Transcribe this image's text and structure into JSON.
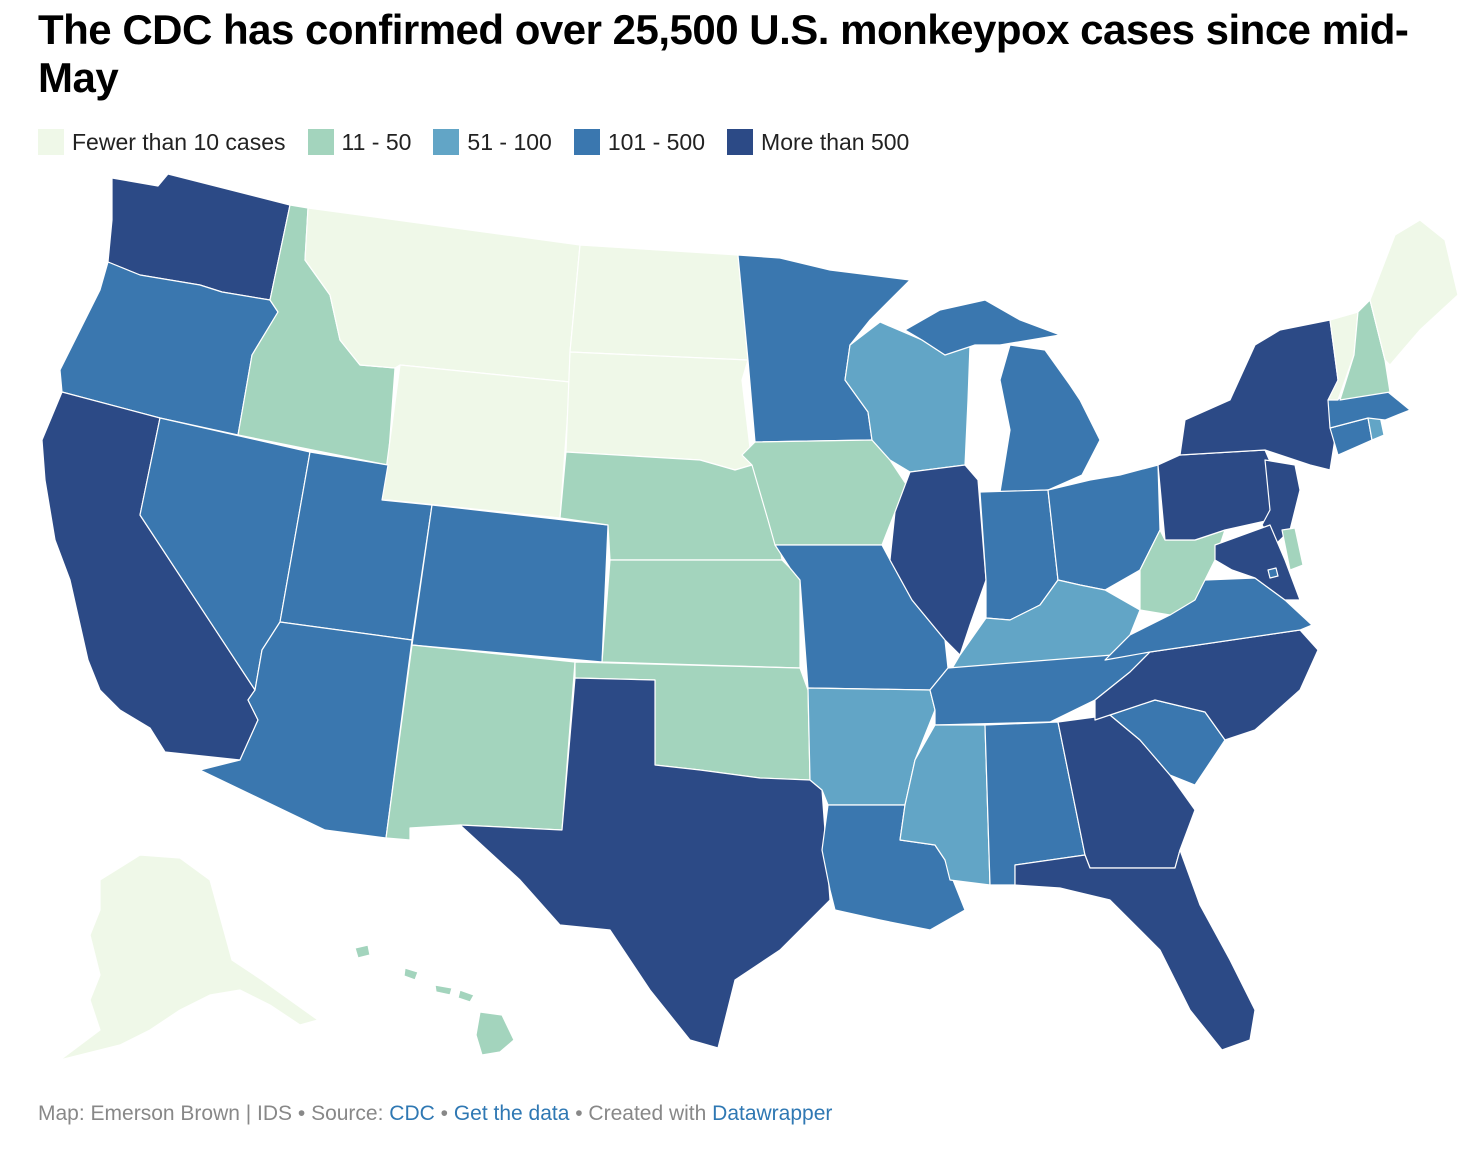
{
  "title": "The CDC has confirmed over 25,500 U.S. monkeypox cases since mid-May",
  "legend": [
    {
      "label": "Fewer than 10 cases",
      "color": "#eff8e8"
    },
    {
      "label": "11 - 50",
      "color": "#a3d4bd"
    },
    {
      "label": "51 - 100",
      "color": "#62a5c6"
    },
    {
      "label": "101 - 500",
      "color": "#3a77af"
    },
    {
      "label": "More than 500",
      "color": "#2c4a86"
    }
  ],
  "states": [
    {
      "id": "WA",
      "bin": 4
    },
    {
      "id": "OR",
      "bin": 3
    },
    {
      "id": "CA",
      "bin": 4
    },
    {
      "id": "ID",
      "bin": 1
    },
    {
      "id": "NV",
      "bin": 3
    },
    {
      "id": "MT",
      "bin": 0
    },
    {
      "id": "WY",
      "bin": 0
    },
    {
      "id": "UT",
      "bin": 3
    },
    {
      "id": "AZ",
      "bin": 3
    },
    {
      "id": "CO",
      "bin": 3
    },
    {
      "id": "NM",
      "bin": 1
    },
    {
      "id": "ND",
      "bin": 0
    },
    {
      "id": "SD",
      "bin": 0
    },
    {
      "id": "NE",
      "bin": 1
    },
    {
      "id": "KS",
      "bin": 1
    },
    {
      "id": "OK",
      "bin": 1
    },
    {
      "id": "TX",
      "bin": 4
    },
    {
      "id": "MN",
      "bin": 3
    },
    {
      "id": "IA",
      "bin": 1
    },
    {
      "id": "MO",
      "bin": 3
    },
    {
      "id": "AR",
      "bin": 2
    },
    {
      "id": "LA",
      "bin": 3
    },
    {
      "id": "WI",
      "bin": 2
    },
    {
      "id": "IL",
      "bin": 4
    },
    {
      "id": "MI",
      "bin": 3
    },
    {
      "id": "IN",
      "bin": 3
    },
    {
      "id": "OH",
      "bin": 3
    },
    {
      "id": "KY",
      "bin": 2
    },
    {
      "id": "TN",
      "bin": 3
    },
    {
      "id": "MS",
      "bin": 2
    },
    {
      "id": "AL",
      "bin": 3
    },
    {
      "id": "GA",
      "bin": 4
    },
    {
      "id": "FL",
      "bin": 4
    },
    {
      "id": "SC",
      "bin": 3
    },
    {
      "id": "NC",
      "bin": 4
    },
    {
      "id": "VA",
      "bin": 3
    },
    {
      "id": "WV",
      "bin": 1
    },
    {
      "id": "PA",
      "bin": 4
    },
    {
      "id": "NY",
      "bin": 4
    },
    {
      "id": "NJ",
      "bin": 4
    },
    {
      "id": "MD",
      "bin": 4
    },
    {
      "id": "DE",
      "bin": 1
    },
    {
      "id": "CT",
      "bin": 3
    },
    {
      "id": "RI",
      "bin": 2
    },
    {
      "id": "MA",
      "bin": 3
    },
    {
      "id": "VT",
      "bin": 0
    },
    {
      "id": "NH",
      "bin": 1
    },
    {
      "id": "ME",
      "bin": 0
    },
    {
      "id": "AK",
      "bin": 0
    },
    {
      "id": "HI",
      "bin": 1
    },
    {
      "id": "DC",
      "bin": 3
    }
  ],
  "footer": {
    "map_credit": "Map: Emerson Brown | IDS",
    "source_label": " • Source: ",
    "source_link": "CDC",
    "sep": " • ",
    "data_link": "Get the data",
    "created_label": " • Created with ",
    "tool_link": "Datawrapper"
  }
}
